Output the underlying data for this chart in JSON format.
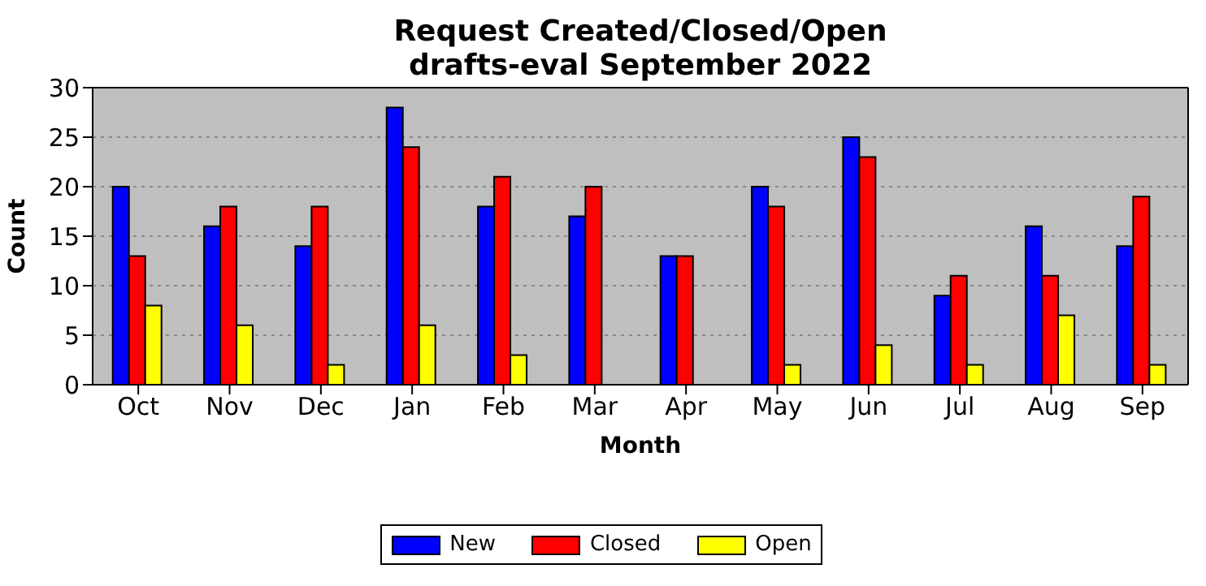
{
  "chart_data": {
    "type": "bar",
    "title": "Request Created/Closed/Open\ndrafts-eval September 2022",
    "xlabel": "Month",
    "ylabel": "Count",
    "categories": [
      "Oct",
      "Nov",
      "Dec",
      "Jan",
      "Feb",
      "Mar",
      "Apr",
      "May",
      "Jun",
      "Jul",
      "Aug",
      "Sep"
    ],
    "series": [
      {
        "name": "New",
        "color": "#0000ff",
        "values": [
          20,
          16,
          14,
          28,
          18,
          17,
          13,
          20,
          25,
          9,
          16,
          14
        ]
      },
      {
        "name": "Closed",
        "color": "#ff0000",
        "values": [
          13,
          18,
          18,
          24,
          21,
          20,
          13,
          18,
          23,
          11,
          11,
          19
        ]
      },
      {
        "name": "Open",
        "color": "#ffff00",
        "values": [
          8,
          6,
          2,
          6,
          3,
          0,
          0,
          2,
          4,
          2,
          7,
          2
        ]
      }
    ],
    "ylim": [
      0,
      30
    ],
    "yticks": [
      0,
      5,
      10,
      15,
      20,
      25,
      30
    ],
    "grid": "y",
    "legend": "bottom"
  }
}
